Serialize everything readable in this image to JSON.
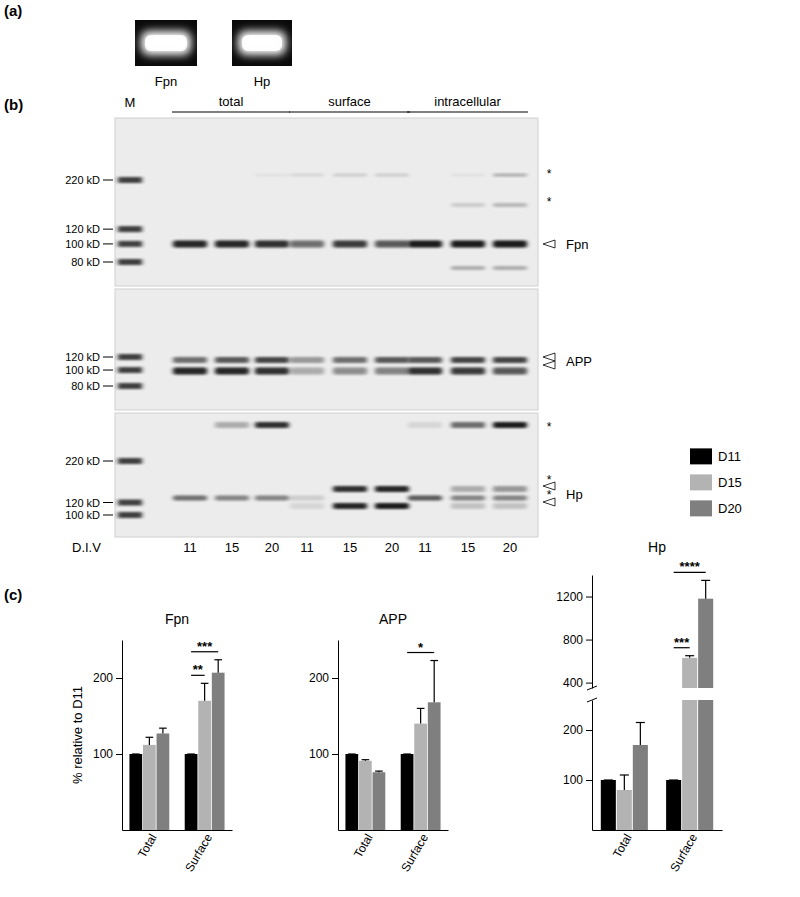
{
  "figure": {
    "panel_a": {
      "label": "(a)",
      "gels": [
        "Fpn",
        "Hp"
      ]
    },
    "panel_b": {
      "label": "(b)",
      "marker_lane": "M",
      "groups": [
        "total",
        "surface",
        "intracellular"
      ],
      "lane_title": "D.I.V",
      "lanes": [
        11,
        15,
        20,
        11,
        15,
        20,
        11,
        15,
        20
      ],
      "blots": [
        {
          "name": "Fpn",
          "markers": [
            {
              "value": 220,
              "label": "220 kD"
            },
            {
              "value": 120,
              "label": "120 kD"
            },
            {
              "value": 100,
              "label": "100 kD"
            },
            {
              "value": 80,
              "label": "80 kD"
            }
          ],
          "asterisks": [
            "*",
            "*"
          ]
        },
        {
          "name": "APP",
          "markers": [
            {
              "value": 120,
              "label": "120 kD"
            },
            {
              "value": 100,
              "label": "100 kD"
            },
            {
              "value": 80,
              "label": "80 kD"
            }
          ],
          "asterisks": []
        },
        {
          "name": "Hp",
          "markers": [
            {
              "value": 220,
              "label": "220 kD"
            },
            {
              "value": 120,
              "label": "120 kD"
            },
            {
              "value": 100,
              "label": "100 kD"
            }
          ],
          "asterisks": [
            "*",
            "*",
            "*"
          ]
        }
      ]
    },
    "panel_c": {
      "label": "(c)"
    }
  },
  "chart_data": [
    {
      "type": "bar",
      "title": "Fpn",
      "y_label": "% relative to D11",
      "categories": [
        "Total",
        "Surface"
      ],
      "series": [
        {
          "name": "D11",
          "color": "#000000",
          "values": [
            100,
            100
          ],
          "errors": [
            0,
            0
          ]
        },
        {
          "name": "D15",
          "color": "#b3b3b3",
          "values": [
            112,
            170
          ],
          "errors": [
            10,
            23
          ]
        },
        {
          "name": "D20",
          "color": "#7f7f7f",
          "values": [
            127,
            207
          ],
          "errors": [
            7,
            17
          ]
        }
      ],
      "ylim": [
        0,
        250
      ],
      "yticks": [
        100,
        200
      ],
      "annotations": [
        {
          "text": "**",
          "category": "Surface",
          "from": "D11",
          "to": "D15"
        },
        {
          "text": "***",
          "category": "Surface",
          "from": "D11",
          "to": "D20"
        }
      ]
    },
    {
      "type": "bar",
      "title": "APP",
      "categories": [
        "Total",
        "Surface"
      ],
      "series": [
        {
          "name": "D11",
          "color": "#000000",
          "values": [
            100,
            100
          ],
          "errors": [
            0,
            0
          ]
        },
        {
          "name": "D15",
          "color": "#b3b3b3",
          "values": [
            91,
            140
          ],
          "errors": [
            1.5,
            20
          ]
        },
        {
          "name": "D20",
          "color": "#7f7f7f",
          "values": [
            76,
            168
          ],
          "errors": [
            1.5,
            55
          ]
        }
      ],
      "ylim": [
        0,
        250
      ],
      "yticks": [
        100,
        200
      ],
      "annotations": [
        {
          "text": "*",
          "category": "Surface",
          "from": "D11",
          "to": "D20"
        }
      ]
    },
    {
      "type": "bar",
      "title": "Hp",
      "legend": "top",
      "categories": [
        "Total",
        "Surface"
      ],
      "series": [
        {
          "name": "D11",
          "color": "#000000",
          "values": [
            100,
            100
          ],
          "errors": [
            0,
            0
          ]
        },
        {
          "name": "D15",
          "color": "#b3b3b3",
          "values": [
            80,
            630
          ],
          "errors": [
            30,
            20
          ]
        },
        {
          "name": "D20",
          "color": "#7f7f7f",
          "values": [
            170,
            1180
          ],
          "errors": [
            45,
            170
          ]
        }
      ],
      "ylim": [
        0,
        1400
      ],
      "axis_break": [
        260,
        350
      ],
      "yticks": [
        100,
        200,
        400,
        800,
        1200
      ],
      "annotations": [
        {
          "text": "***",
          "category": "Surface",
          "from": "D11",
          "to": "D15"
        },
        {
          "text": "****",
          "category": "Surface",
          "from": "D11",
          "to": "D20"
        }
      ]
    }
  ]
}
